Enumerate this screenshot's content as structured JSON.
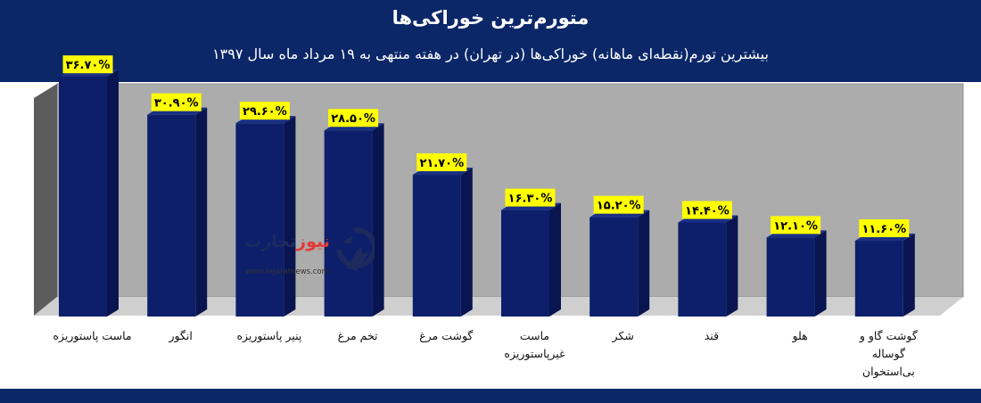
{
  "header": {
    "title": "متورم‌ترین خوراکی‌ها",
    "subtitle": "بیشترین تورم(نقطه‌ای ماهانه) خوراکی‌ها (در تهران) در هفته منتهی به ۱۹ مرداد ماه سال ۱۳۹۷"
  },
  "logo": {
    "name_main": "تجارت",
    "name_accent": "نیوز",
    "url": "www.tejaratnews.com"
  },
  "colors": {
    "header_bg": "#0b2768",
    "bar": "#0d1f6b",
    "label_bg": "#ffff00",
    "plot_back": "#acacac",
    "accent": "#e53935"
  },
  "chart_data": {
    "type": "bar",
    "style": "3d",
    "categories": [
      "ماست پاستوریزه",
      "انگور",
      "پنیر پاستوریزه",
      "تخم مرغ",
      "گوشت مرغ",
      "ماست غیرپاستوریزه",
      "شکر",
      "قند",
      "هلو",
      "گوشت گاو و گوساله بی‌استخوان"
    ],
    "category_lines": [
      [
        "ماست پاستوریزه"
      ],
      [
        "انگور"
      ],
      [
        "پنیر پاستوریزه"
      ],
      [
        "تخم مرغ"
      ],
      [
        "گوشت مرغ"
      ],
      [
        "ماست",
        "غیرپاستوریزه"
      ],
      [
        "شکر"
      ],
      [
        "قند"
      ],
      [
        "هلو"
      ],
      [
        "گوشت گاو و",
        "گوساله",
        "بی‌استخوان"
      ]
    ],
    "values": [
      36.7,
      30.9,
      29.6,
      28.5,
      21.7,
      16.3,
      15.2,
      14.4,
      12.1,
      11.6
    ],
    "data_labels": [
      "۳۶.۷۰%",
      "۳۰.۹۰%",
      "۲۹.۶۰%",
      "۲۸.۵۰%",
      "۲۱.۷۰%",
      "۱۶.۳۰%",
      "۱۵.۲۰%",
      "۱۴.۴۰%",
      "۱۲.۱۰%",
      "۱۱.۶۰%"
    ],
    "ylim": [
      0,
      40
    ],
    "grid": false,
    "legend": "none"
  }
}
